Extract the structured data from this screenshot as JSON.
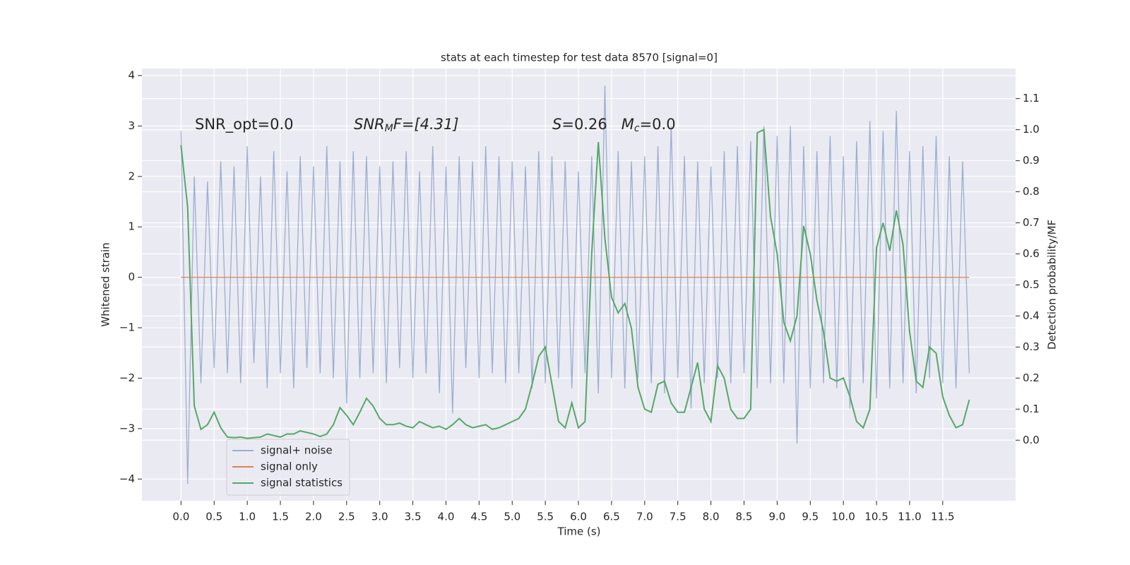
{
  "chart_data": {
    "type": "line",
    "title": "stats at each timestep for test data 8570 [signal=0]",
    "xlabel": "Time (s)",
    "ylabel": "Whitened strain",
    "y2label": "Detection probability/MF",
    "annotations": [
      [
        "SNR_opt=0.0"
      ],
      [
        "SNR",
        "M",
        "F=[4.31]"
      ],
      [
        "S",
        "=0.26   ",
        "M",
        "c",
        "=0.0"
      ]
    ],
    "x": [
      0.0,
      0.1,
      0.2,
      0.3,
      0.4,
      0.5,
      0.6,
      0.7,
      0.8,
      0.9,
      1.0,
      1.1,
      1.2,
      1.3,
      1.4,
      1.5,
      1.6,
      1.7,
      1.8,
      1.9,
      2.0,
      2.1,
      2.2,
      2.3,
      2.4,
      2.5,
      2.6,
      2.7,
      2.8,
      2.9,
      3.0,
      3.1,
      3.2,
      3.3,
      3.4,
      3.5,
      3.6,
      3.7,
      3.8,
      3.9,
      4.0,
      4.1,
      4.2,
      4.3,
      4.4,
      4.5,
      4.6,
      4.7,
      4.8,
      4.9,
      5.0,
      5.1,
      5.2,
      5.3,
      5.4,
      5.5,
      5.6,
      5.7,
      5.8,
      5.9,
      6.0,
      6.1,
      6.2,
      6.3,
      6.4,
      6.5,
      6.6,
      6.7,
      6.8,
      6.9,
      7.0,
      7.1,
      7.2,
      7.3,
      7.4,
      7.5,
      7.6,
      7.7,
      7.8,
      7.9,
      8.0,
      8.1,
      8.2,
      8.3,
      8.4,
      8.5,
      8.6,
      8.7,
      8.8,
      8.9,
      9.0,
      9.1,
      9.2,
      9.3,
      9.4,
      9.5,
      9.6,
      9.7,
      9.8,
      9.9,
      10.0,
      10.1,
      10.2,
      10.3,
      10.4,
      10.5,
      10.6,
      10.7,
      10.8,
      10.9,
      11.0,
      11.1,
      11.2,
      11.3,
      11.4,
      11.5,
      11.6,
      11.7,
      11.8,
      11.9
    ],
    "series": [
      {
        "name": "signal+ noise",
        "color": "#4c72b0",
        "opacity": 0.5,
        "values": [
          2.9,
          -4.1,
          2.0,
          -2.1,
          1.9,
          -1.8,
          2.3,
          -1.9,
          2.2,
          -2.1,
          2.6,
          -1.7,
          2.0,
          -2.2,
          2.5,
          -1.9,
          2.1,
          -2.2,
          2.4,
          -1.8,
          2.2,
          -1.9,
          2.6,
          -2.0,
          2.3,
          -2.5,
          2.5,
          -2.0,
          2.4,
          -1.9,
          2.2,
          -2.1,
          2.3,
          -1.8,
          2.5,
          -2.0,
          2.1,
          -1.9,
          2.6,
          -2.3,
          2.2,
          -2.7,
          2.4,
          -1.8,
          2.3,
          -2.0,
          2.6,
          -1.9,
          2.4,
          -2.1,
          2.3,
          -1.9,
          2.2,
          -2.2,
          2.5,
          -2.1,
          2.4,
          -2.0,
          2.3,
          -2.2,
          2.1,
          -1.9,
          2.4,
          -2.3,
          3.8,
          -2.0,
          2.5,
          -2.2,
          2.3,
          -2.0,
          2.4,
          -2.1,
          2.6,
          -2.3,
          3.0,
          -2.0,
          2.4,
          -2.6,
          2.3,
          -2.1,
          2.2,
          -2.0,
          2.5,
          -2.1,
          2.6,
          -1.9,
          2.7,
          -2.2,
          3.0,
          -2.1,
          2.8,
          -2.1,
          3.0,
          -3.3,
          2.6,
          -2.2,
          2.5,
          -2.1,
          2.8,
          -2.2,
          2.4,
          -2.6,
          2.7,
          -2.1,
          3.1,
          -2.4,
          2.9,
          -2.2,
          3.3,
          -2.1,
          2.5,
          -2.3,
          2.6,
          -2.0,
          2.8,
          -2.1,
          2.4,
          -2.2,
          2.3,
          -1.9
        ]
      },
      {
        "name": "signal only",
        "color": "#dd8452",
        "opacity": 1,
        "values": [
          0,
          0,
          0,
          0,
          0,
          0,
          0,
          0,
          0,
          0,
          0,
          0,
          0,
          0,
          0,
          0,
          0,
          0,
          0,
          0,
          0,
          0,
          0,
          0,
          0,
          0,
          0,
          0,
          0,
          0,
          0,
          0,
          0,
          0,
          0,
          0,
          0,
          0,
          0,
          0,
          0,
          0,
          0,
          0,
          0,
          0,
          0,
          0,
          0,
          0,
          0,
          0,
          0,
          0,
          0,
          0,
          0,
          0,
          0,
          0,
          0,
          0,
          0,
          0,
          0,
          0,
          0,
          0,
          0,
          0,
          0,
          0,
          0,
          0,
          0,
          0,
          0,
          0,
          0,
          0,
          0,
          0,
          0,
          0,
          0,
          0,
          0,
          0,
          0,
          0,
          0,
          0,
          0,
          0,
          0,
          0,
          0,
          0,
          0,
          0,
          0,
          0,
          0,
          0,
          0,
          0,
          0,
          0,
          0,
          0,
          0,
          0,
          0,
          0,
          0,
          0,
          0,
          0,
          0,
          0
        ]
      },
      {
        "name": "signal statistics",
        "color": "#55a868",
        "opacity": 1,
        "axis": "y2",
        "values": [
          0.95,
          0.75,
          0.11,
          0.035,
          0.05,
          0.09,
          0.04,
          0.01,
          0.008,
          0.01,
          0.006,
          0.008,
          0.01,
          0.02,
          0.015,
          0.01,
          0.02,
          0.02,
          0.03,
          0.025,
          0.02,
          0.012,
          0.02,
          0.05,
          0.105,
          0.08,
          0.05,
          0.09,
          0.135,
          0.11,
          0.07,
          0.05,
          0.05,
          0.055,
          0.045,
          0.04,
          0.06,
          0.05,
          0.04,
          0.045,
          0.035,
          0.05,
          0.07,
          0.05,
          0.04,
          0.045,
          0.05,
          0.035,
          0.04,
          0.05,
          0.06,
          0.07,
          0.1,
          0.18,
          0.27,
          0.3,
          0.18,
          0.06,
          0.04,
          0.12,
          0.04,
          0.06,
          0.6,
          0.96,
          0.65,
          0.46,
          0.41,
          0.44,
          0.36,
          0.17,
          0.1,
          0.09,
          0.18,
          0.19,
          0.12,
          0.09,
          0.09,
          0.17,
          0.25,
          0.1,
          0.06,
          0.24,
          0.2,
          0.1,
          0.07,
          0.07,
          0.1,
          0.99,
          1.0,
          0.72,
          0.6,
          0.38,
          0.32,
          0.4,
          0.69,
          0.6,
          0.45,
          0.35,
          0.2,
          0.19,
          0.2,
          0.14,
          0.06,
          0.04,
          0.1,
          0.62,
          0.7,
          0.61,
          0.74,
          0.63,
          0.35,
          0.19,
          0.17,
          0.3,
          0.28,
          0.14,
          0.08,
          0.04,
          0.05,
          0.13
        ]
      }
    ],
    "xlim": [
      -0.59,
      12.6
    ],
    "ylim": [
      -4.43,
      4.14
    ],
    "y2lim": [
      -0.195,
      1.197
    ],
    "xticks": [
      {
        "value": 0,
        "label": "0.0"
      },
      {
        "value": 0.5,
        "label": "0.5"
      },
      {
        "value": 1,
        "label": "1.0"
      },
      {
        "value": 1.5,
        "label": "1.5"
      },
      {
        "value": 2,
        "label": "2.0"
      },
      {
        "value": 2.5,
        "label": "2.5"
      },
      {
        "value": 3,
        "label": "3.0"
      },
      {
        "value": 3.5,
        "label": "3.5"
      },
      {
        "value": 4,
        "label": "4.0"
      },
      {
        "value": 4.5,
        "label": "4.5"
      },
      {
        "value": 5,
        "label": "5.0"
      },
      {
        "value": 5.5,
        "label": "5.5"
      },
      {
        "value": 6,
        "label": "6.0"
      },
      {
        "value": 6.5,
        "label": "6.5"
      },
      {
        "value": 7,
        "label": "7.0"
      },
      {
        "value": 7.5,
        "label": "7.5"
      },
      {
        "value": 8,
        "label": "8.0"
      },
      {
        "value": 8.5,
        "label": "8.5"
      },
      {
        "value": 9,
        "label": "9.0"
      },
      {
        "value": 9.5,
        "label": "9.5"
      },
      {
        "value": 10,
        "label": "10.0"
      },
      {
        "value": 10.5,
        "label": "10.5"
      },
      {
        "value": 11,
        "label": "11.0"
      },
      {
        "value": 11.5,
        "label": "11.5"
      }
    ],
    "yticks": [
      {
        "value": -4,
        "label": "−4"
      },
      {
        "value": -3,
        "label": "−3"
      },
      {
        "value": -2,
        "label": "−2"
      },
      {
        "value": -1,
        "label": "−1"
      },
      0,
      1,
      2,
      3,
      4
    ],
    "y2ticks": [
      {
        "value": 0,
        "label": "0.0"
      },
      {
        "value": 0.1,
        "label": "0.1"
      },
      {
        "value": 0.2,
        "label": "0.2"
      },
      {
        "value": 0.3,
        "label": "0.3"
      },
      {
        "value": 0.4,
        "label": "0.4"
      },
      {
        "value": 0.5,
        "label": "0.5"
      },
      {
        "value": 0.6,
        "label": "0.6"
      },
      {
        "value": 0.7,
        "label": "0.7"
      },
      {
        "value": 0.8,
        "label": "0.8"
      },
      {
        "value": 0.9,
        "label": "0.9"
      },
      {
        "value": 1,
        "label": "1.0"
      },
      {
        "value": 1.1,
        "label": "1.1"
      }
    ],
    "grid": true,
    "legend": "lower left"
  }
}
